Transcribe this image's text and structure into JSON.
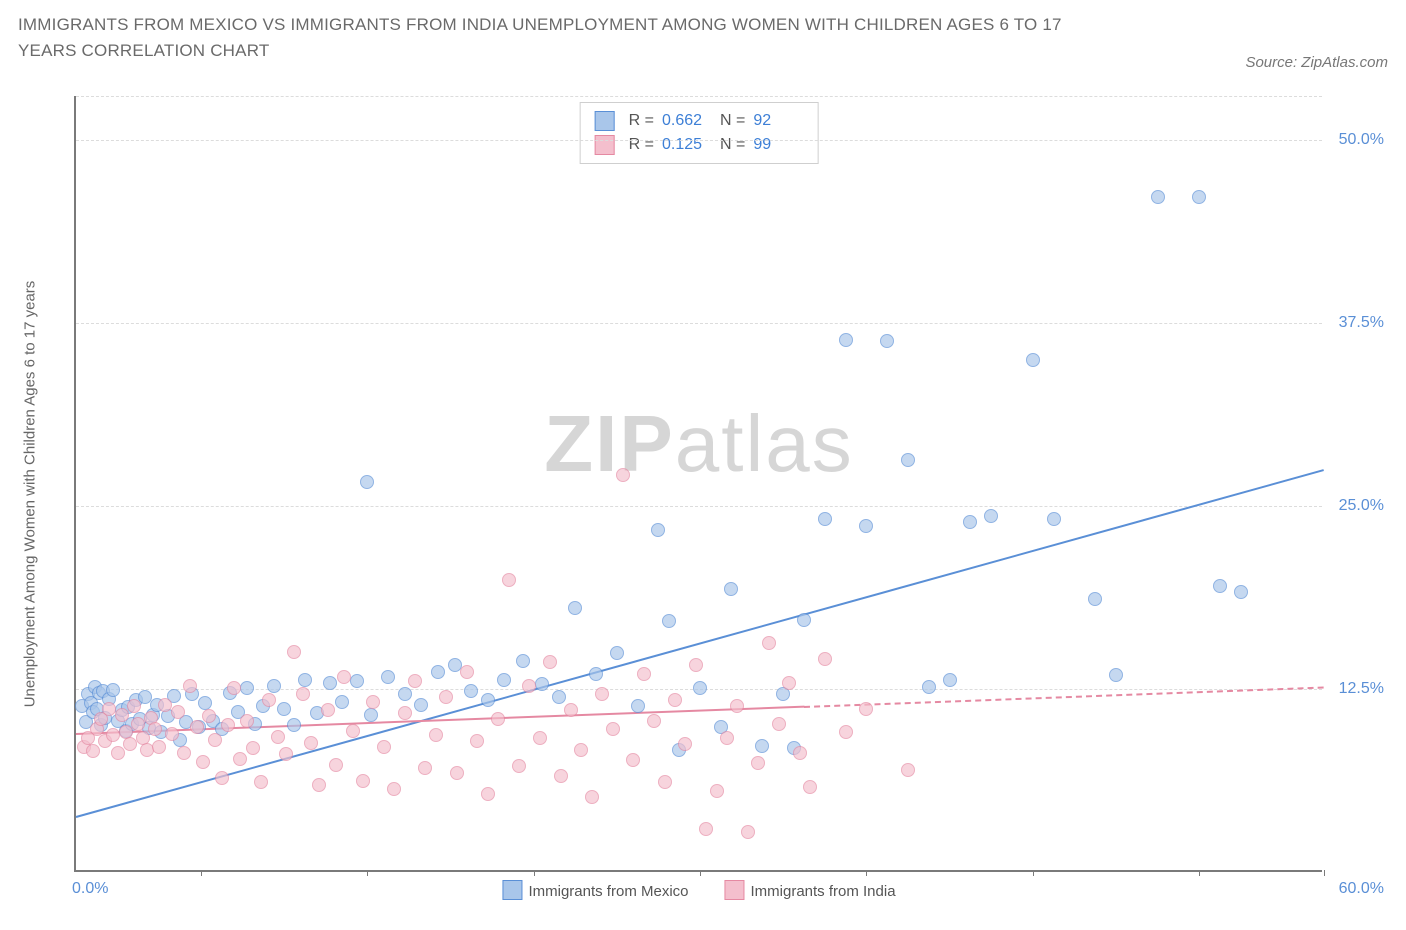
{
  "title": "IMMIGRANTS FROM MEXICO VS IMMIGRANTS FROM INDIA UNEMPLOYMENT AMONG WOMEN WITH CHILDREN AGES 6 TO 17 YEARS CORRELATION CHART",
  "source": "Source: ZipAtlas.com",
  "ylabel": "Unemployment Among Women with Children Ages 6 to 17 years",
  "chart": {
    "type": "scatter",
    "xlim": [
      0,
      60
    ],
    "ylim": [
      0,
      53
    ],
    "x_start_label": "0.0%",
    "x_end_label": "60.0%",
    "x_ticks": [
      6,
      14,
      22,
      30,
      38,
      46,
      54,
      60
    ],
    "y_gridlines": [
      12.5,
      25.0,
      37.5,
      50.0
    ],
    "y_tick_labels": [
      "12.5%",
      "25.0%",
      "37.5%",
      "50.0%"
    ],
    "grid_color": "#dcdcdc",
    "axis_color": "#7a7a7a",
    "tick_label_color": "#5a8fd6",
    "background_color": "#ffffff",
    "marker_radius": 7,
    "marker_fill_opacity": 0.32,
    "marker_stroke_opacity": 0.85,
    "marker_stroke_width": 1.4,
    "trend_line_width": 2.2
  },
  "watermark": {
    "text_bold": "ZIP",
    "text_light": "atlas",
    "color": "#d6d6d6"
  },
  "series": [
    {
      "key": "mexico",
      "label": "Immigrants from Mexico",
      "color": "#5a8fd6",
      "fill": "#a9c6ea",
      "R": "0.662",
      "N": "92",
      "trend": {
        "x1": 0,
        "y1": 3.8,
        "x2": 60,
        "y2": 27.5,
        "dashed_from_x": null
      },
      "points": [
        [
          0.3,
          11.2
        ],
        [
          0.5,
          10.1
        ],
        [
          0.6,
          12.0
        ],
        [
          0.7,
          11.4
        ],
        [
          0.8,
          10.8
        ],
        [
          0.9,
          12.5
        ],
        [
          1.0,
          11.0
        ],
        [
          1.1,
          12.1
        ],
        [
          1.2,
          9.9
        ],
        [
          1.3,
          12.2
        ],
        [
          1.4,
          10.4
        ],
        [
          1.6,
          11.7
        ],
        [
          1.8,
          12.3
        ],
        [
          2.0,
          10.2
        ],
        [
          2.2,
          10.9
        ],
        [
          2.4,
          9.5
        ],
        [
          2.5,
          11.1
        ],
        [
          2.7,
          10.0
        ],
        [
          2.9,
          11.6
        ],
        [
          3.1,
          10.3
        ],
        [
          3.3,
          11.8
        ],
        [
          3.5,
          9.7
        ],
        [
          3.7,
          10.6
        ],
        [
          3.9,
          11.3
        ],
        [
          4.1,
          9.4
        ],
        [
          4.4,
          10.5
        ],
        [
          4.7,
          11.9
        ],
        [
          5.0,
          8.9
        ],
        [
          5.3,
          10.1
        ],
        [
          5.6,
          12.0
        ],
        [
          5.9,
          9.8
        ],
        [
          6.2,
          11.4
        ],
        [
          6.6,
          10.2
        ],
        [
          7.0,
          9.6
        ],
        [
          7.4,
          12.1
        ],
        [
          7.8,
          10.8
        ],
        [
          8.2,
          12.4
        ],
        [
          8.6,
          10.0
        ],
        [
          9.0,
          11.2
        ],
        [
          9.5,
          12.6
        ],
        [
          10.0,
          11.0
        ],
        [
          10.5,
          9.9
        ],
        [
          11.0,
          13.0
        ],
        [
          11.6,
          10.7
        ],
        [
          12.2,
          12.8
        ],
        [
          12.8,
          11.5
        ],
        [
          13.5,
          12.9
        ],
        [
          14.2,
          10.6
        ],
        [
          15.0,
          13.2
        ],
        [
          15.8,
          12.0
        ],
        [
          16.6,
          11.3
        ],
        [
          17.4,
          13.5
        ],
        [
          18.2,
          14.0
        ],
        [
          19.0,
          12.2
        ],
        [
          19.8,
          11.6
        ],
        [
          20.6,
          13.0
        ],
        [
          21.5,
          14.3
        ],
        [
          22.4,
          12.7
        ],
        [
          23.2,
          11.8
        ],
        [
          24.0,
          17.9
        ],
        [
          25.0,
          13.4
        ],
        [
          26.0,
          14.8
        ],
        [
          27.0,
          11.2
        ],
        [
          28.0,
          23.2
        ],
        [
          28.5,
          17.0
        ],
        [
          29.0,
          8.2
        ],
        [
          30.0,
          12.4
        ],
        [
          31.0,
          9.8
        ],
        [
          31.5,
          19.2
        ],
        [
          33.0,
          8.5
        ],
        [
          34.0,
          12.0
        ],
        [
          34.5,
          8.3
        ],
        [
          35.0,
          17.1
        ],
        [
          36.0,
          24.0
        ],
        [
          37.0,
          36.2
        ],
        [
          38.0,
          23.5
        ],
        [
          39.0,
          36.1
        ],
        [
          40.0,
          28.0
        ],
        [
          41.0,
          12.5
        ],
        [
          42.0,
          13.0
        ],
        [
          43.0,
          23.8
        ],
        [
          44.0,
          24.2
        ],
        [
          46.0,
          34.8
        ],
        [
          47.0,
          24.0
        ],
        [
          49.0,
          18.5
        ],
        [
          50.0,
          13.3
        ],
        [
          52.0,
          46.0
        ],
        [
          54.0,
          46.0
        ],
        [
          55.0,
          19.4
        ],
        [
          56.0,
          19.0
        ]
      ]
    },
    {
      "key": "india",
      "label": "Immigrants from India",
      "color": "#e589a2",
      "fill": "#f4bfcd",
      "R": "0.125",
      "N": "99",
      "trend": {
        "x1": 0,
        "y1": 9.5,
        "x2": 60,
        "y2": 12.7,
        "dashed_from_x": 35
      },
      "points": [
        [
          0.4,
          8.4
        ],
        [
          0.6,
          9.0
        ],
        [
          0.8,
          8.1
        ],
        [
          1.0,
          9.6
        ],
        [
          1.2,
          10.3
        ],
        [
          1.4,
          8.8
        ],
        [
          1.6,
          11.0
        ],
        [
          1.8,
          9.2
        ],
        [
          2.0,
          8.0
        ],
        [
          2.2,
          10.6
        ],
        [
          2.4,
          9.4
        ],
        [
          2.6,
          8.6
        ],
        [
          2.8,
          11.2
        ],
        [
          3.0,
          10.0
        ],
        [
          3.2,
          9.0
        ],
        [
          3.4,
          8.2
        ],
        [
          3.6,
          10.4
        ],
        [
          3.8,
          9.6
        ],
        [
          4.0,
          8.4
        ],
        [
          4.3,
          11.3
        ],
        [
          4.6,
          9.3
        ],
        [
          4.9,
          10.8
        ],
        [
          5.2,
          8.0
        ],
        [
          5.5,
          12.6
        ],
        [
          5.8,
          9.8
        ],
        [
          6.1,
          7.4
        ],
        [
          6.4,
          10.5
        ],
        [
          6.7,
          8.9
        ],
        [
          7.0,
          6.3
        ],
        [
          7.3,
          9.9
        ],
        [
          7.6,
          12.4
        ],
        [
          7.9,
          7.6
        ],
        [
          8.2,
          10.2
        ],
        [
          8.5,
          8.3
        ],
        [
          8.9,
          6.0
        ],
        [
          9.3,
          11.6
        ],
        [
          9.7,
          9.1
        ],
        [
          10.1,
          7.9
        ],
        [
          10.5,
          14.9
        ],
        [
          10.9,
          12.0
        ],
        [
          11.3,
          8.7
        ],
        [
          11.7,
          5.8
        ],
        [
          12.1,
          10.9
        ],
        [
          12.5,
          7.2
        ],
        [
          12.9,
          13.2
        ],
        [
          13.3,
          9.5
        ],
        [
          13.8,
          6.1
        ],
        [
          14.3,
          11.5
        ],
        [
          14.8,
          8.4
        ],
        [
          15.3,
          5.5
        ],
        [
          15.8,
          10.7
        ],
        [
          16.3,
          12.9
        ],
        [
          16.8,
          7.0
        ],
        [
          17.3,
          9.2
        ],
        [
          17.8,
          11.8
        ],
        [
          18.3,
          6.6
        ],
        [
          18.8,
          13.5
        ],
        [
          19.3,
          8.8
        ],
        [
          19.8,
          5.2
        ],
        [
          20.3,
          10.3
        ],
        [
          20.8,
          19.8
        ],
        [
          21.3,
          7.1
        ],
        [
          21.8,
          12.6
        ],
        [
          22.3,
          9.0
        ],
        [
          22.8,
          14.2
        ],
        [
          23.3,
          6.4
        ],
        [
          23.8,
          10.9
        ],
        [
          24.3,
          8.2
        ],
        [
          24.8,
          5.0
        ],
        [
          25.3,
          12.0
        ],
        [
          25.8,
          9.6
        ],
        [
          26.3,
          27.0
        ],
        [
          26.8,
          7.5
        ],
        [
          27.3,
          13.4
        ],
        [
          27.8,
          10.2
        ],
        [
          28.3,
          6.0
        ],
        [
          28.8,
          11.6
        ],
        [
          29.3,
          8.6
        ],
        [
          29.8,
          14.0
        ],
        [
          30.3,
          2.8
        ],
        [
          30.8,
          5.4
        ],
        [
          31.3,
          9.0
        ],
        [
          31.8,
          11.2
        ],
        [
          32.3,
          2.6
        ],
        [
          32.8,
          7.3
        ],
        [
          33.3,
          15.5
        ],
        [
          33.8,
          10.0
        ],
        [
          34.3,
          12.8
        ],
        [
          34.8,
          8.0
        ],
        [
          35.3,
          5.7
        ],
        [
          36.0,
          14.4
        ],
        [
          37.0,
          9.4
        ],
        [
          38.0,
          11.0
        ],
        [
          40.0,
          6.8
        ]
      ]
    },
    {
      "key": "mexico_extra",
      "label": null,
      "color": "#5a8fd6",
      "fill": "#a9c6ea",
      "points": [
        [
          14.0,
          26.5
        ]
      ]
    }
  ],
  "legend_top": {
    "rows": [
      {
        "swatch": "mexico",
        "R_label": "R =",
        "R": "0.662",
        "N_label": "N =",
        "N": "92"
      },
      {
        "swatch": "india",
        "R_label": "R =",
        "R": "0.125",
        "N_label": "N =",
        "N": "99"
      }
    ]
  },
  "legend_bottom": [
    {
      "swatch": "mexico",
      "label": "Immigrants from Mexico"
    },
    {
      "swatch": "india",
      "label": "Immigrants from India"
    }
  ]
}
